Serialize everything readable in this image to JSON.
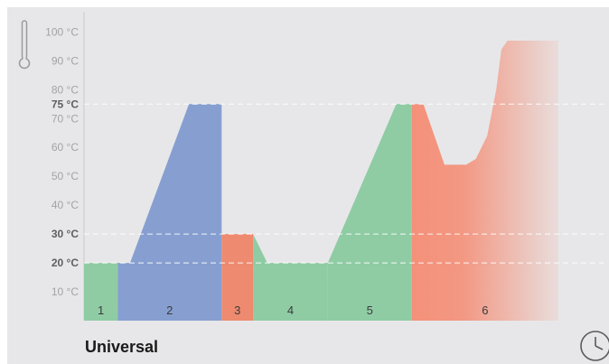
{
  "program": {
    "name": "Universal"
  },
  "icons": {
    "temperature": "thermometer-icon",
    "timer": "clock-icon"
  },
  "colors": {
    "panel": "#e7e7e9",
    "green": "#8fcca4",
    "blue": "#869fd0",
    "orange": "#f4917a",
    "orange_dark": "#ee8a6f",
    "tick": "#a3a3a6",
    "tick_bold": "#5f5f62"
  },
  "chart_data": {
    "type": "area",
    "ylabel": "",
    "y_unit": "°C",
    "ylim": [
      0,
      107
    ],
    "y_ticks": [
      {
        "value": 10,
        "label": "10 °C",
        "bold": false
      },
      {
        "value": 20,
        "label": "20 °C",
        "bold": true
      },
      {
        "value": 30,
        "label": "30 °C",
        "bold": true
      },
      {
        "value": 40,
        "label": "40 °C",
        "bold": false
      },
      {
        "value": 50,
        "label": "50 °C",
        "bold": false
      },
      {
        "value": 60,
        "label": "60 °C",
        "bold": false
      },
      {
        "value": 70,
        "label": "70 °C",
        "bold": false
      },
      {
        "value": 75,
        "label": "75 °C",
        "bold": true
      },
      {
        "value": 80,
        "label": "80 °C",
        "bold": false
      },
      {
        "value": 90,
        "label": "90 °C",
        "bold": false
      },
      {
        "value": 100,
        "label": "100 °C",
        "bold": false
      }
    ],
    "reference_lines": [
      20,
      30,
      75
    ],
    "phases": [
      {
        "label": "1",
        "color": "#8fcca4",
        "start": 0,
        "end": 10.4,
        "profile": [
          [
            0,
            20
          ],
          [
            10.4,
            20
          ]
        ]
      },
      {
        "label": "2",
        "color": "#869fd0",
        "start": 10.4,
        "end": 42.5,
        "profile": [
          [
            10.4,
            20
          ],
          [
            14.2,
            20
          ],
          [
            32.4,
            75
          ],
          [
            42.5,
            75
          ]
        ]
      },
      {
        "label": "3",
        "color": "#ee8a6f",
        "start": 42.5,
        "end": 52.2,
        "profile": [
          [
            42.5,
            30
          ],
          [
            52.2,
            30
          ]
        ]
      },
      {
        "label": "4",
        "color": "#8fcca4",
        "start": 52.2,
        "end": 75.3,
        "profile": [
          [
            52.2,
            30
          ],
          [
            56.6,
            20
          ],
          [
            75.3,
            20
          ]
        ]
      },
      {
        "label": "5",
        "color": "#8fcca4",
        "start": 75.3,
        "end": 101.2,
        "profile": [
          [
            75.3,
            20
          ],
          [
            96.4,
            75
          ],
          [
            101.2,
            75
          ]
        ]
      },
      {
        "label": "6",
        "color": "#f4917a",
        "start": 101.2,
        "end": 146.5,
        "profile": [
          [
            101.2,
            75
          ],
          [
            104.8,
            75
          ],
          [
            111.3,
            54
          ],
          [
            118,
            54
          ],
          [
            121,
            56
          ],
          [
            124.5,
            64
          ],
          [
            127.3,
            80
          ],
          [
            128.9,
            94
          ],
          [
            130.8,
            97
          ],
          [
            146.5,
            97
          ]
        ]
      }
    ],
    "x_max": 146.5
  }
}
